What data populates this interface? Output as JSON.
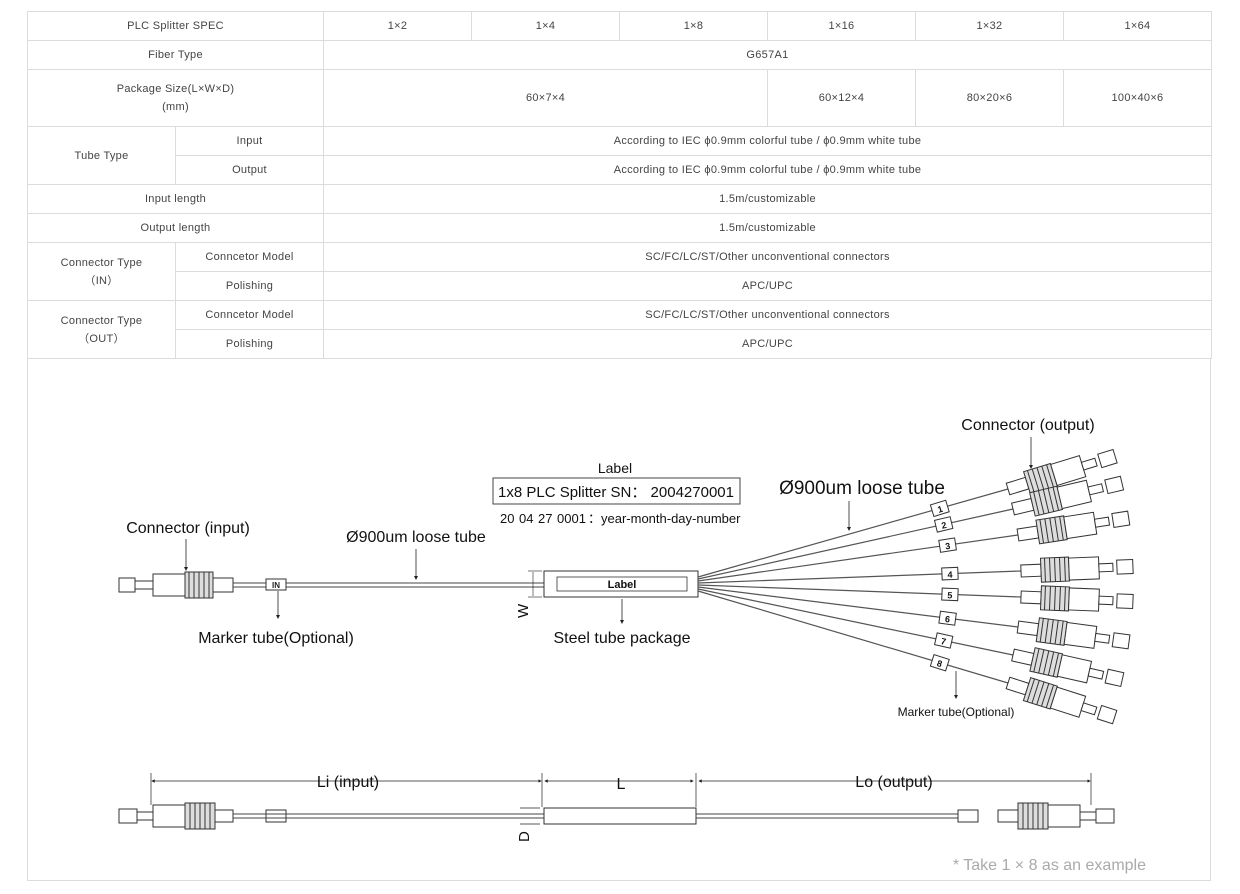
{
  "table": {
    "header": {
      "label": "PLC Splitter SPEC",
      "columns": [
        "1×2",
        "1×4",
        "1×8",
        "1×16",
        "1×32",
        "1×64"
      ]
    },
    "fiber_type": {
      "label": "Fiber Type",
      "value": "G657A1"
    },
    "package_size": {
      "label_line1": "Package Size(L×W×D)",
      "label_line2": "(mm)",
      "values": [
        "60×7×4",
        "60×12×4",
        "80×20×6",
        "100×40×6"
      ]
    },
    "tube_type": {
      "label": "Tube Type",
      "input_label": "Input",
      "input_value": "According to IEC ϕ0.9mm colorful tube / ϕ0.9mm white tube",
      "output_label": "Output",
      "output_value": "According to IEC ϕ0.9mm colorful tube / ϕ0.9mm white tube"
    },
    "input_length": {
      "label": "Input length",
      "value": "1.5m/customizable"
    },
    "output_length": {
      "label": "Output length",
      "value": "1.5m/customizable"
    },
    "connector_in": {
      "label_line1": "Connector Type",
      "label_line2": "（IN）",
      "model_label": "Conncetor Model",
      "model_value": "SC/FC/LC/ST/Other unconventional connectors",
      "polishing_label": "Polishing",
      "polishing_value": "APC/UPC"
    },
    "connector_out": {
      "label_line1": "Connector Type",
      "label_line2": "（OUT）",
      "model_label": "Conncetor Model",
      "model_value": "SC/FC/LC/ST/Other unconventional connectors",
      "polishing_label": "Polishing",
      "polishing_value": "APC/UPC"
    }
  },
  "diagram": {
    "connector_input": "Connector (input)",
    "connector_output": "Connector (output)",
    "loose_tube_left": "Ø900um loose tube",
    "loose_tube_right": "Ø900um loose tube",
    "label_title": "Label",
    "label_box_text": "1x8 PLC Splitter SN： 2004270001",
    "sn_parts": [
      "20",
      "04",
      "27",
      "0001"
    ],
    "sn_explain": "：year-month-day-number",
    "in_marker": "IN",
    "w_mark": "W",
    "box_label": "Label",
    "marker_tube_left": "Marker tube(Optional)",
    "steel_tube": "Steel tube package",
    "marker_tube_right": "Marker tube(Optional)",
    "output_numbers": [
      "1",
      "2",
      "3",
      "4",
      "5",
      "6",
      "7",
      "8"
    ],
    "li_label": "Li (input)",
    "l_label": "L",
    "lo_label": "Lo (output)",
    "d_mark": "D",
    "footnote": "* Take 1 × 8 as an example"
  }
}
